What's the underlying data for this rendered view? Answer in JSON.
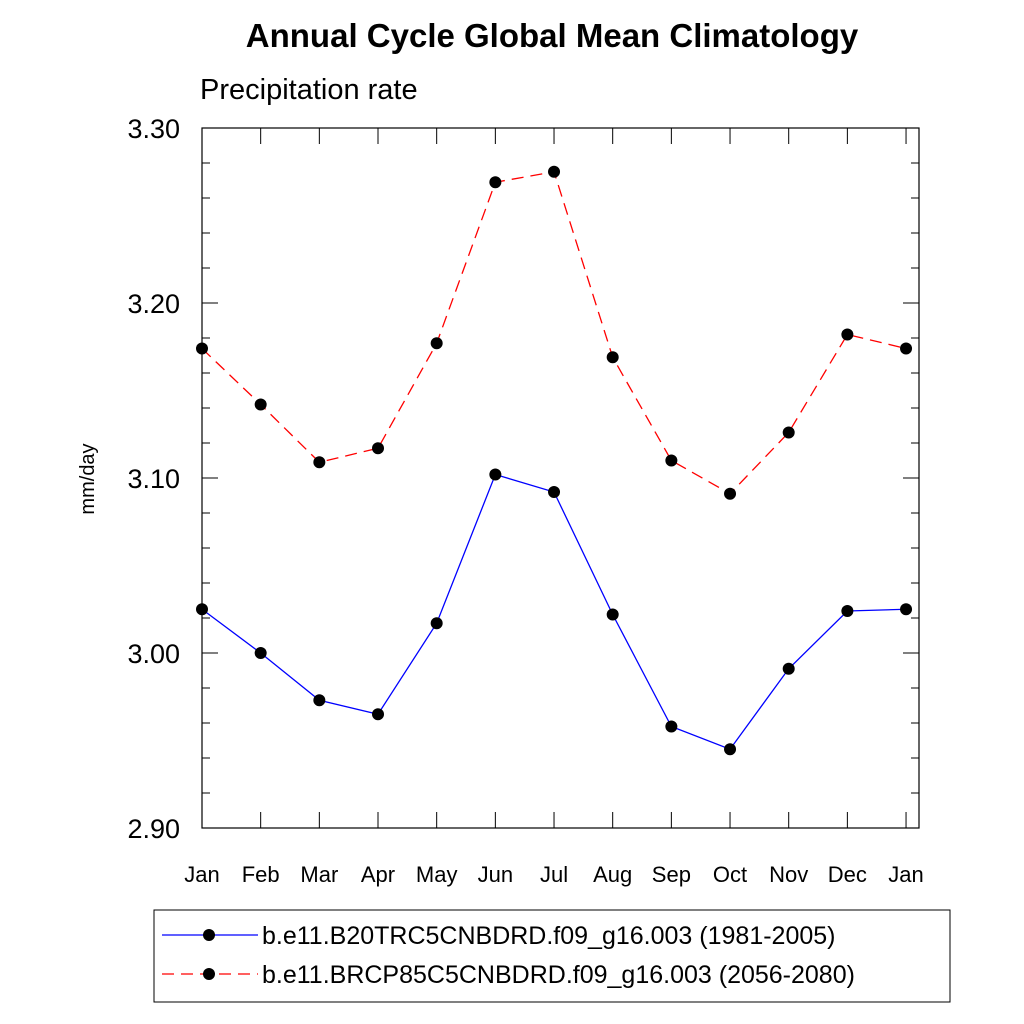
{
  "chart_data": {
    "type": "line",
    "title": "Annual Cycle Global Mean Climatology",
    "subtitle": "Precipitation rate",
    "xlabel": "",
    "ylabel": "mm/day",
    "ylim": [
      2.9,
      3.3
    ],
    "yticks": [
      "2.90",
      "3.00",
      "3.10",
      "3.20",
      "3.30"
    ],
    "categories": [
      "Jan",
      "Feb",
      "Mar",
      "Apr",
      "May",
      "Jun",
      "Jul",
      "Aug",
      "Sep",
      "Oct",
      "Nov",
      "Dec",
      "Jan"
    ],
    "series": [
      {
        "name": "b.e11.B20TRC5CNBDRD.f09_g16.003 (1981-2005)",
        "color": "#0000ff",
        "dashed": false,
        "values": [
          3.025,
          3.0,
          2.973,
          2.965,
          3.017,
          3.102,
          3.092,
          3.022,
          2.958,
          2.945,
          2.991,
          3.024,
          3.025
        ]
      },
      {
        "name": "b.e11.BRCP85C5CNBDRD.f09_g16.003 (2056-2080)",
        "color": "#ff0000",
        "dashed": true,
        "values": [
          3.174,
          3.142,
          3.109,
          3.117,
          3.177,
          3.269,
          3.275,
          3.169,
          3.11,
          3.091,
          3.126,
          3.182,
          3.174
        ]
      }
    ],
    "legend_position": "bottom"
  }
}
